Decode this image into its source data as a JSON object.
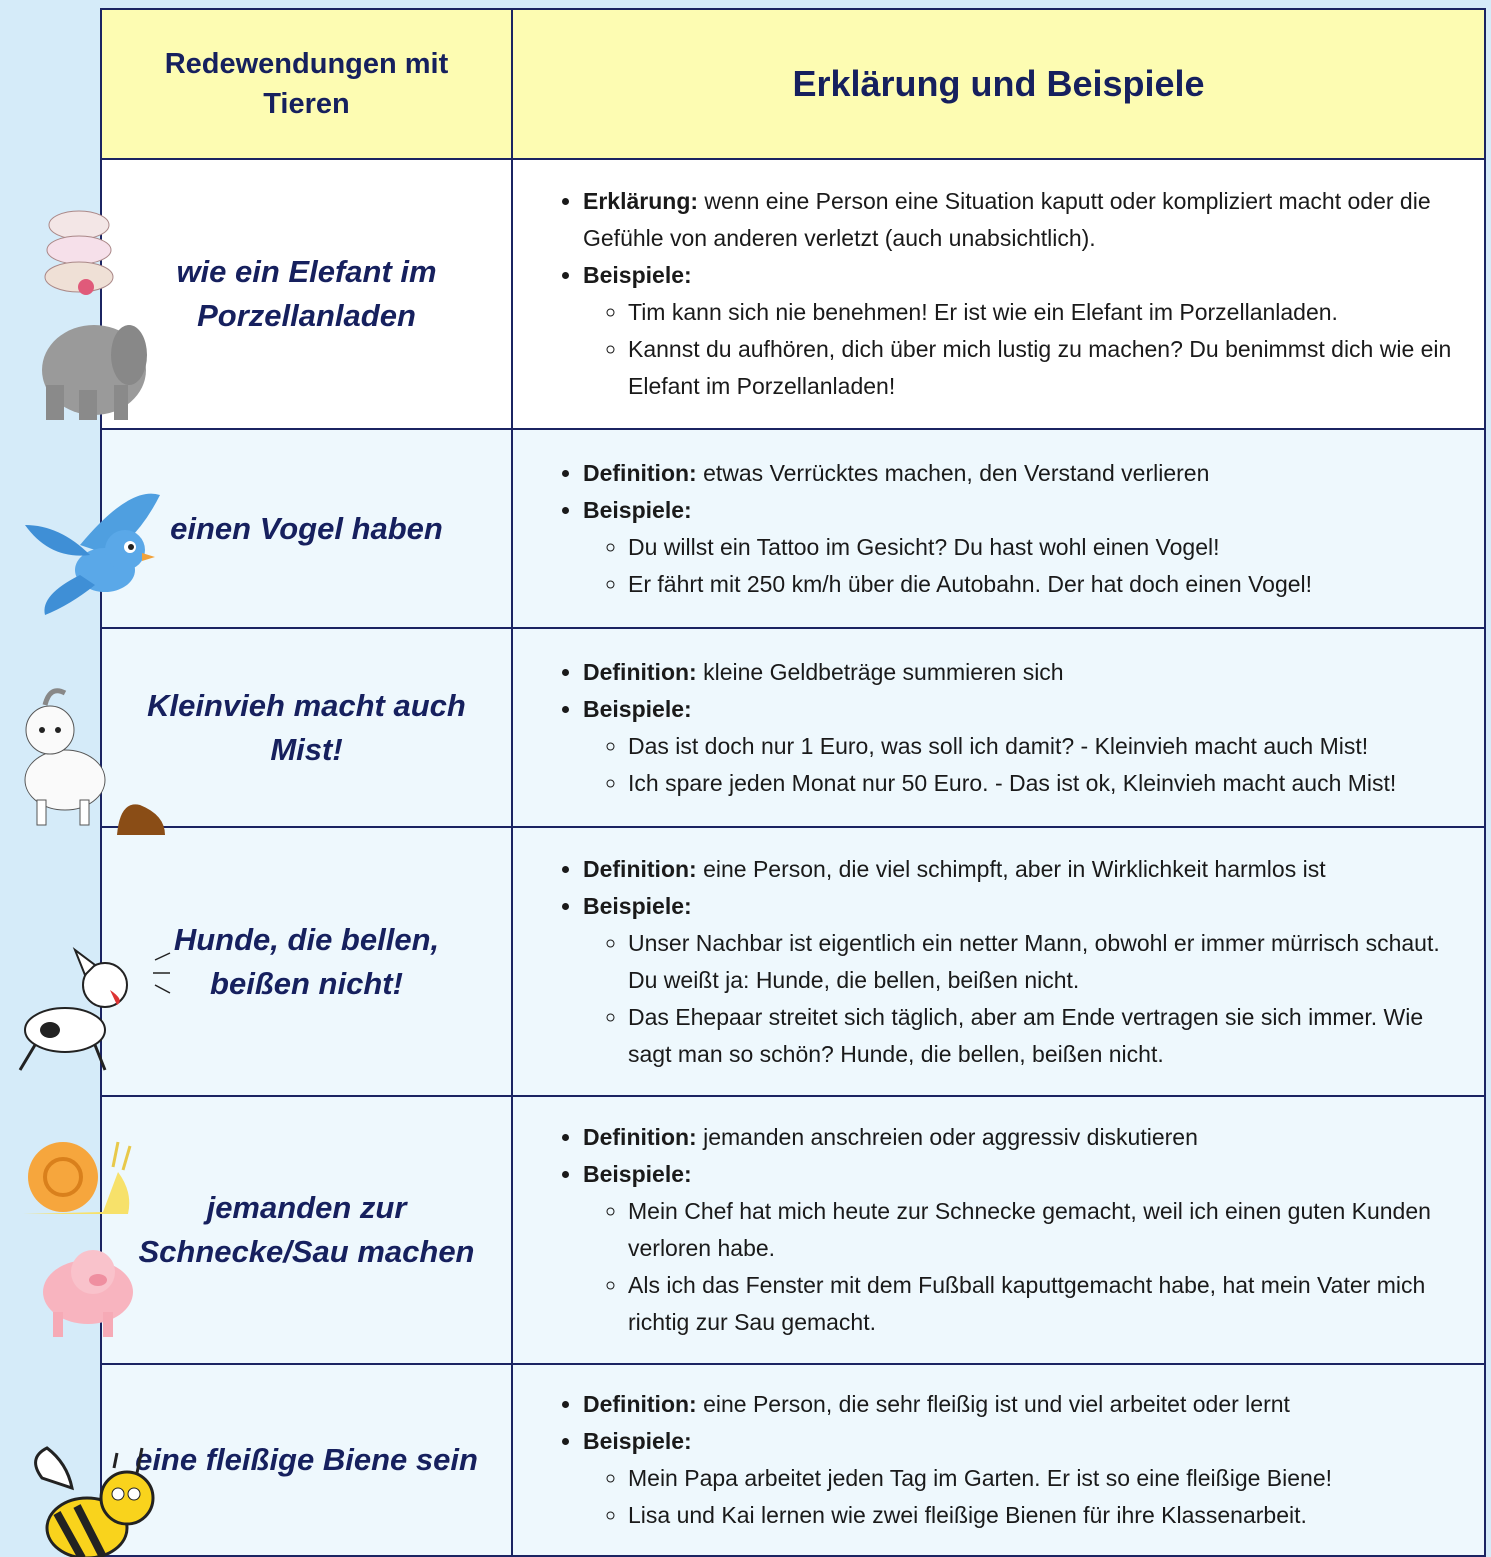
{
  "table": {
    "header": [
      "Redewendungen mit Tieren",
      "Erklärung und Beispiele"
    ],
    "rows": [
      {
        "idiom": "wie ein Elefant im Porzellanladen",
        "definition_label": "Erklärung:",
        "definition": "wenn eine Person eine Situation kaputt oder kompliziert macht oder die Gefühle von anderen verletzt (auch unabsichtlich).",
        "examples_label": "Beispiele:",
        "examples": [
          "Tim kann sich nie benehmen! Er ist wie ein Elefant im Porzellanladen.",
          "Kannst du aufhören, dich über mich lustig zu machen? Du benimmst dich wie ein Elefant im Porzellanladen!"
        ]
      },
      {
        "idiom": "einen Vogel haben",
        "definition_label": "Definition:",
        "definition": "etwas Verrücktes machen, den Verstand verlieren",
        "examples_label": "Beispiele:",
        "examples": [
          "Du willst ein Tattoo im Gesicht? Du hast wohl einen Vogel!",
          "Er fährt mit 250 km/h über die Autobahn. Der hat doch einen Vogel!"
        ]
      },
      {
        "idiom": "Kleinvieh macht auch Mist!",
        "definition_label": "Definition:",
        "definition": "kleine Geldbeträge summieren sich",
        "examples_label": "Beispiele:",
        "examples": [
          "Das ist doch nur 1 Euro, was soll ich damit? - Kleinvieh macht auch Mist!",
          "Ich spare jeden Monat nur 50 Euro. - Das ist ok, Kleinvieh macht auch Mist!"
        ]
      },
      {
        "idiom": "Hunde, die bellen, beißen nicht!",
        "definition_label": "Definition:",
        "definition": "eine Person, die viel schimpft, aber in Wirklichkeit harmlos ist",
        "examples_label": "Beispiele:",
        "examples": [
          "Unser Nachbar ist eigentlich ein netter Mann, obwohl er immer mürrisch schaut. Du weißt ja: Hunde, die bellen, beißen nicht.",
          "Das Ehepaar streitet sich täglich, aber am Ende vertragen sie sich immer. Wie sagt man so schön? Hunde, die bellen, beißen nicht."
        ]
      },
      {
        "idiom": "jemanden zur Schnecke/Sau machen",
        "definition_label": "Definition:",
        "definition": "jemanden anschreien oder aggressiv diskutieren",
        "examples_label": "Beispiele:",
        "examples": [
          "Mein Chef hat mich heute zur Schnecke gemacht, weil ich einen guten Kunden verloren habe.",
          "Als ich das Fenster mit dem Fußball kaputtgemacht habe, hat mein Vater mich richtig zur Sau gemacht."
        ]
      },
      {
        "idiom": "eine fleißige Biene sein",
        "definition_label": "Definition:",
        "definition": "eine Person, die sehr fleißig ist und viel arbeitet oder lernt",
        "examples_label": "Beispiele:",
        "examples": [
          "Mein Papa arbeitet jeden Tag im Garten. Er ist so eine fleißige Biene!",
          "Lisa und Kai lernen wie zwei fleißige Bienen für ihre Klassenarbeit."
        ]
      }
    ]
  }
}
